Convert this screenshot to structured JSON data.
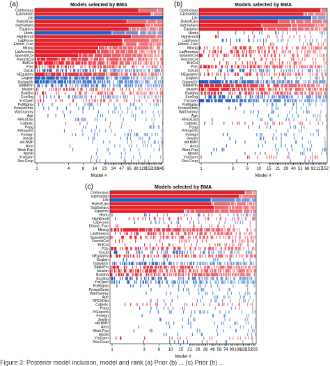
{
  "figure": {
    "caption_fragment": "Figure 3: Posterior model inclusion, model and rank (a) Prior (b) ... (c) Prior (b) ..."
  },
  "colors": {
    "positive": "#e8212b",
    "negative": "#1f5fc1",
    "background": "#ffffff",
    "frame": "#000000"
  },
  "chart_data": [
    {
      "panel_label": "(a)",
      "type": "heatmap",
      "title": "Models selected by BMA",
      "xlabel": "Model #",
      "x_ticks": [
        "1",
        "4",
        "8",
        "14",
        "23",
        "34",
        "47",
        "65",
        "88",
        "120",
        "152",
        "198",
        "345"
      ],
      "n_models": 345,
      "ylabels": [
        "Confucious",
        "GDPsh560",
        "Life",
        "RuleofLaw",
        "SubSahara",
        "EquipInv",
        "Hindu",
        "HighEnroll",
        "LabForce",
        "EthnoL.Frac",
        "Mining",
        "LatAmerica",
        "SpanishCol",
        "FrenchCol",
        "BritCol",
        "P.Sc",
        "CivLib",
        "NEquipInv",
        "English",
        "OutwarOr",
        "BlMktPm",
        "Muslim",
        "Buddha",
        "EcoOrg",
        "YrsOpen",
        "PolRights",
        "ProtestSmts",
        "WarDummy",
        "Age",
        "RFEXDist",
        "Catholic",
        "Popg",
        "PrExports",
        "Foreign",
        "Jewish",
        "std.BMP",
        "Area",
        "Work.Pop",
        "Abslat",
        "YrsOpen",
        "Rev.Coup"
      ],
      "inclusion": [
        0.99,
        0.99,
        0.98,
        0.96,
        0.97,
        0.92,
        0.9,
        0.93,
        0.91,
        0.89,
        0.85,
        0.8,
        0.74,
        0.6,
        0.62,
        0.5,
        0.45,
        0.62,
        0.58,
        0.55,
        0.35,
        0.3,
        0.28,
        0.24,
        0.18,
        0.1,
        0.06,
        0.06,
        0.06,
        0.05,
        0.05,
        0.04,
        0.04,
        0.04,
        0.03,
        0.03,
        0.03,
        0.03,
        0.03,
        0.02,
        0.03
      ],
      "sign": [
        "+",
        "+",
        "-",
        "+",
        "+",
        "+",
        "-",
        "+",
        "+",
        "+",
        "+",
        "+",
        "+",
        "+",
        "+",
        "+",
        "-",
        "+",
        "-",
        "-",
        "-",
        "+",
        "+",
        "-",
        "+",
        "-",
        "-",
        "-",
        "-",
        "-",
        "+",
        "-",
        "-",
        "-",
        "-",
        "-",
        "-",
        "-",
        "-",
        "-",
        "-"
      ]
    },
    {
      "panel_label": "(b)",
      "type": "heatmap",
      "title": "Models selected by BMA",
      "xlabel": "Model #",
      "x_ticks": [
        "1",
        "3",
        "6",
        "10",
        "15",
        "21",
        "29",
        "40",
        "51",
        "68",
        "92",
        "117",
        "152"
      ],
      "n_models": 152,
      "ylabels": [
        "Confucious",
        "GDPsh560",
        "Life",
        "RuleofLaw",
        "SubSahara",
        "EquipInv",
        "Hindu",
        "HighEnroll",
        "LabForce",
        "EthnoL.Frac",
        "Mining",
        "LatAmerica",
        "SpanishCol",
        "FrenchCol",
        "BritCol",
        "P.Sc",
        "CivLib",
        "NEquipInv",
        "English",
        "OutwarOr",
        "BlMktPm",
        "Muslim",
        "Buddha",
        "EcoOrg",
        "YrsOpen",
        "PolRights",
        "ProtestSmts",
        "WarDummy",
        "Age",
        "RFEXDist",
        "Catholic",
        "Popg",
        "PrExports",
        "Foreign",
        "Jewish",
        "std.BMP",
        "Area",
        "Work.Pop",
        "Abslat",
        "YrsOpen",
        "Rev.Coup"
      ],
      "inclusion": [
        0.98,
        0.97,
        0.95,
        0.9,
        0.88,
        0.85,
        0.05,
        0.15,
        0.12,
        0.1,
        0.4,
        0.35,
        0.3,
        0.18,
        0.12,
        0.45,
        0.3,
        0.35,
        0.1,
        0.6,
        0.55,
        0.55,
        0.5,
        0.45,
        0.55,
        0.1,
        0.05,
        0.05,
        0.05,
        0.05,
        0.1,
        0.05,
        0.05,
        0.05,
        0.05,
        0.05,
        0.05,
        0.05,
        0.05,
        0.1,
        0.03
      ],
      "sign": [
        "+",
        "+",
        "-",
        "+",
        "+",
        "+",
        "-",
        "+",
        "-",
        "+",
        "+",
        "+",
        "+",
        "+",
        "+",
        "+",
        "-",
        "+",
        "-",
        "-",
        "+",
        "+",
        "+",
        "-",
        "-",
        "-",
        "-",
        "-",
        "-",
        "-",
        "+",
        "-",
        "-",
        "-",
        "-",
        "-",
        "-",
        "-",
        "-",
        "+",
        "-"
      ]
    },
    {
      "panel_label": "(c)",
      "type": "heatmap",
      "title": "Models selected by BMA",
      "xlabel": "Model #",
      "x_ticks": [
        "1",
        "3",
        "6",
        "10",
        "15",
        "21",
        "28",
        "36",
        "46",
        "58",
        "74",
        "90",
        "106",
        "126",
        "151",
        "203"
      ],
      "n_models": 203,
      "ylabels": [
        "Confucious",
        "GDPsh560",
        "Life",
        "RuleofLaw",
        "SubSahara",
        "EquipInv",
        "Hindu",
        "HighEnroll",
        "LabForce",
        "EthnoL.Frac",
        "Mining",
        "LatAmerica",
        "SpanishCol",
        "FrenchCol",
        "BritCol",
        "P.Sc",
        "CivLib",
        "NEquipInv",
        "English",
        "OutwarOr",
        "BlMktPm",
        "Muslim",
        "Buddha",
        "EcoOrg",
        "YrsOpen",
        "PolRights",
        "ProtestSmts",
        "WarDummy",
        "Age",
        "RFEXDist",
        "Catholic",
        "Popg",
        "PrExports",
        "Foreign",
        "Jewish",
        "std.BMP",
        "Area",
        "Work.Pop",
        "Abslat",
        "YrsOpen",
        "Rev.Coup"
      ],
      "inclusion": [
        0.99,
        0.98,
        0.95,
        0.92,
        0.9,
        0.85,
        0.1,
        0.15,
        0.1,
        0.08,
        0.55,
        0.35,
        0.3,
        0.15,
        0.1,
        0.4,
        0.3,
        0.45,
        0.08,
        0.5,
        0.45,
        0.5,
        0.5,
        0.4,
        0.35,
        0.1,
        0.05,
        0.05,
        0.05,
        0.05,
        0.1,
        0.05,
        0.05,
        0.05,
        0.05,
        0.05,
        0.05,
        0.05,
        0.05,
        0.1,
        0.03
      ],
      "sign": [
        "+",
        "+",
        "-",
        "+",
        "+",
        "+",
        "-",
        "+",
        "-",
        "+",
        "+",
        "+",
        "+",
        "+",
        "+",
        "+",
        "-",
        "+",
        "-",
        "-",
        "+",
        "+",
        "+",
        "-",
        "-",
        "-",
        "-",
        "-",
        "-",
        "-",
        "+",
        "-",
        "-",
        "-",
        "-",
        "-",
        "-",
        "-",
        "-",
        "+",
        "-"
      ]
    }
  ]
}
